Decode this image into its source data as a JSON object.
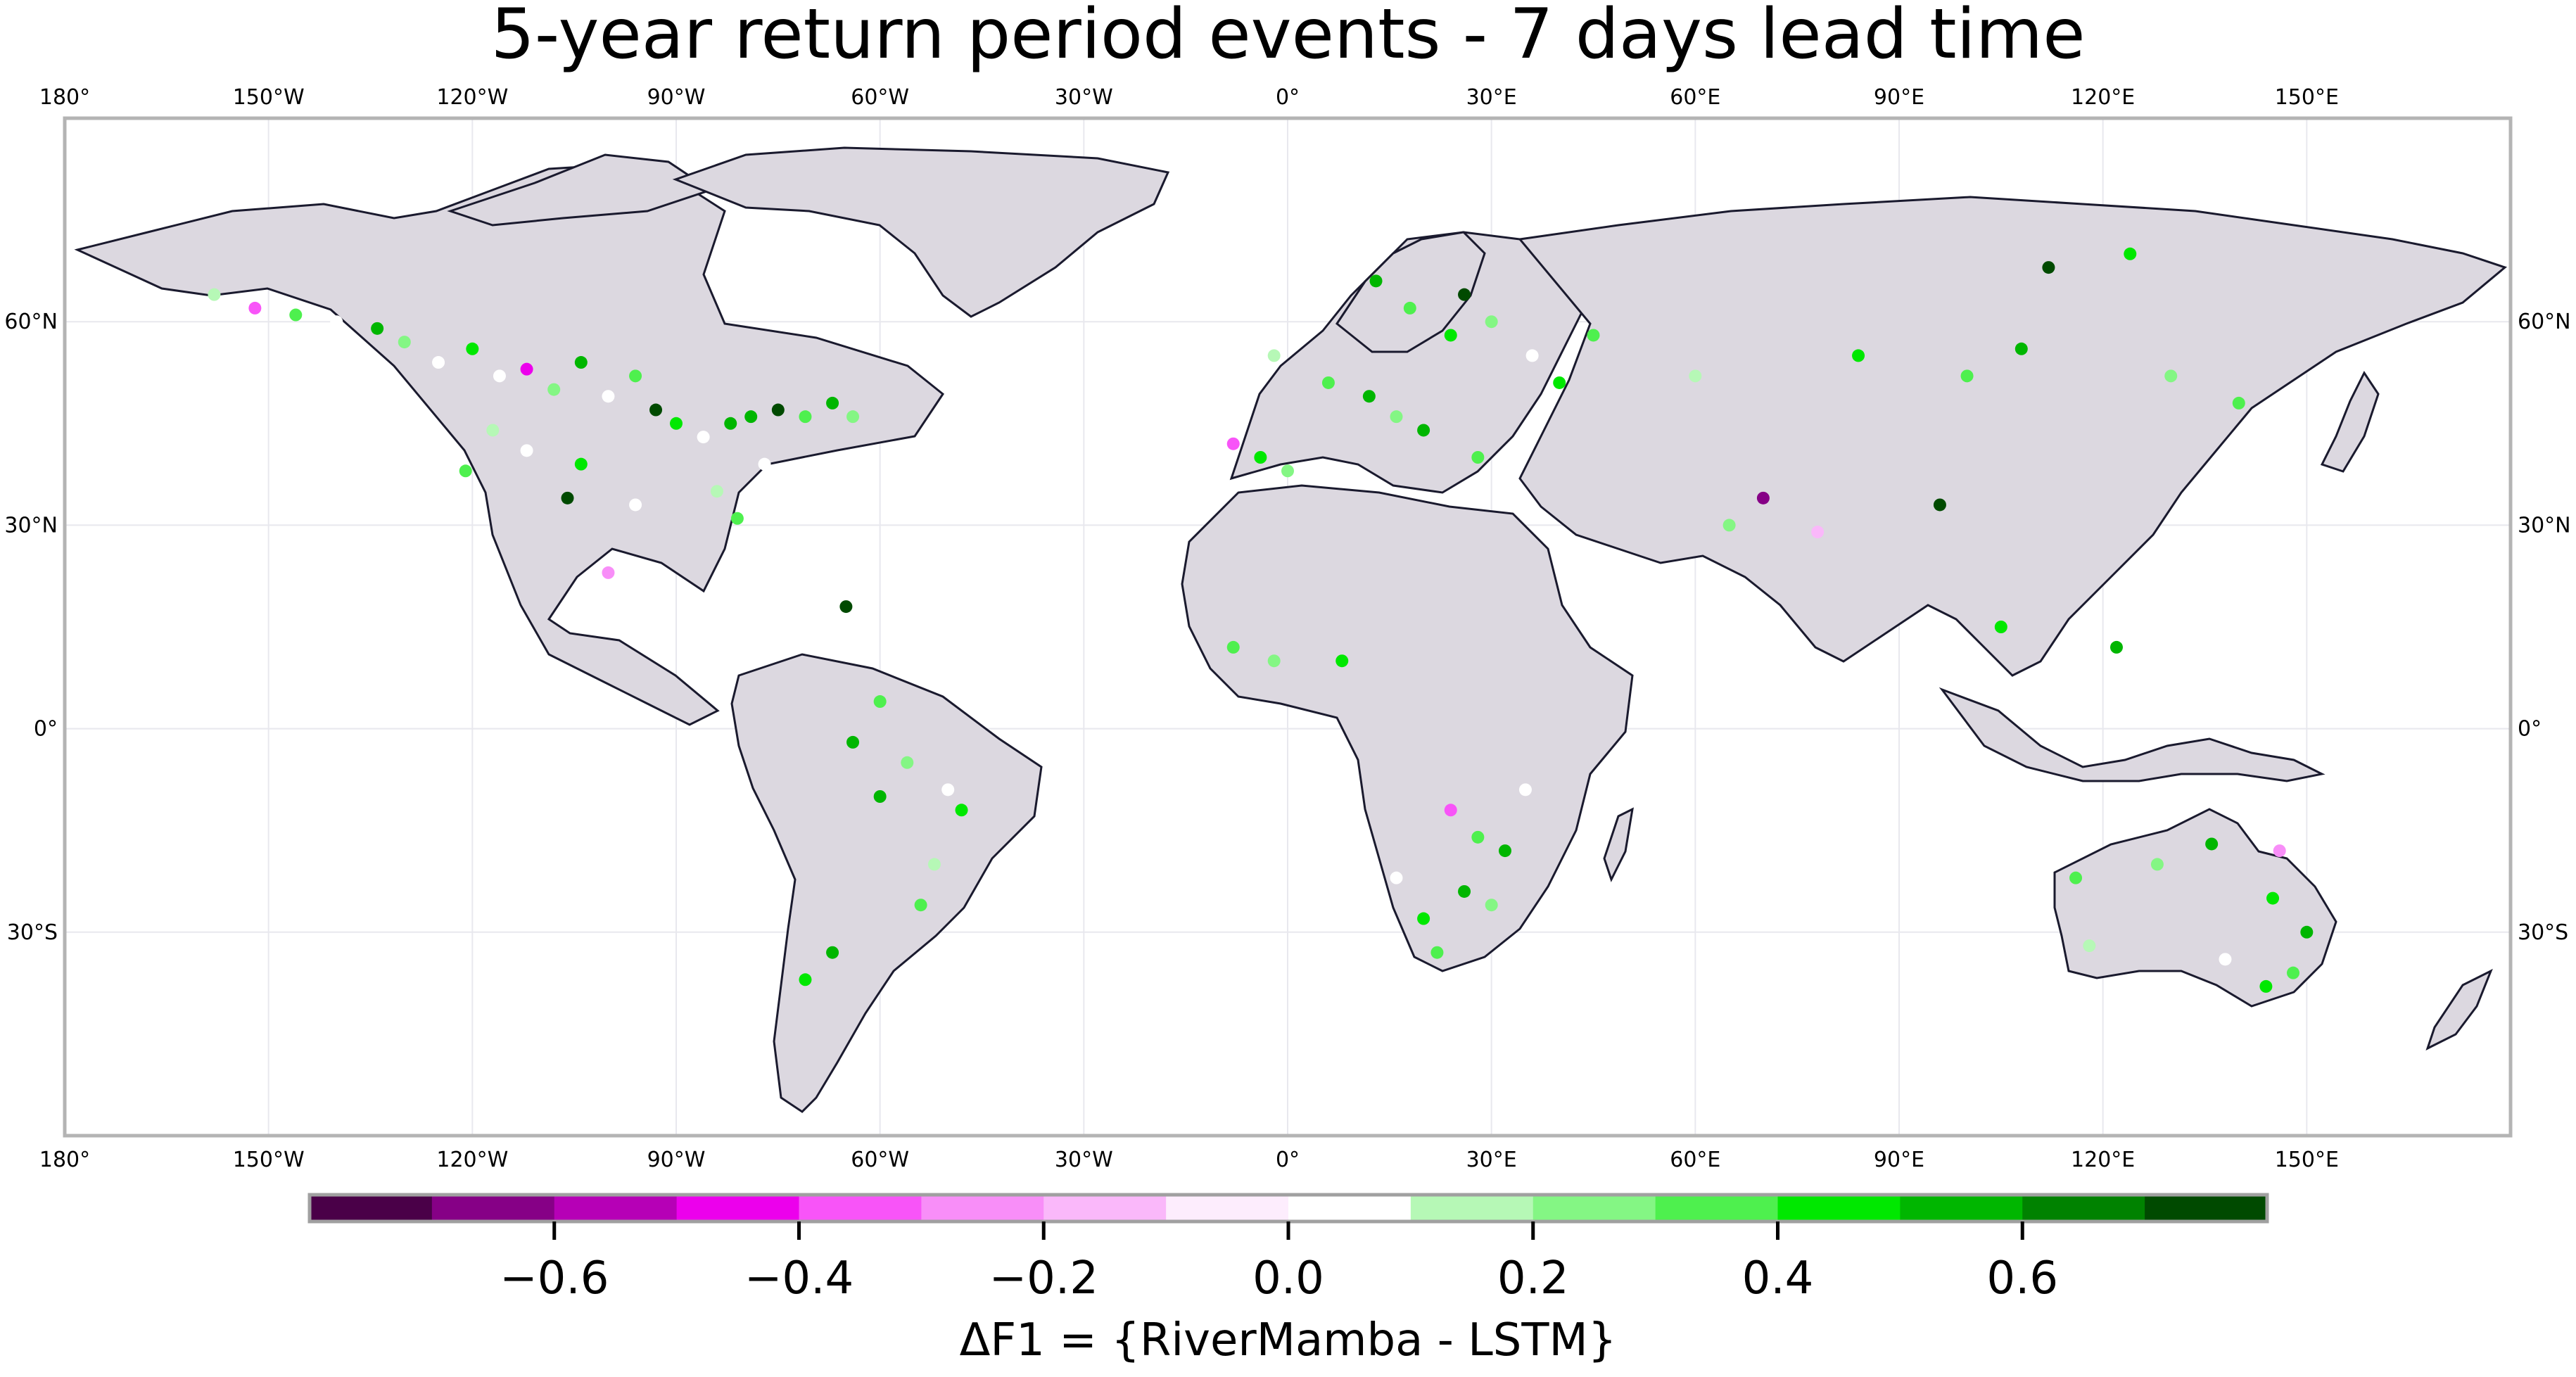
{
  "title": "5-year return period events - 7 days lead time",
  "map": {
    "projection": "equirectangular",
    "lon_range": [
      -180,
      180
    ],
    "lat_range": [
      -60,
      90
    ],
    "land_color": "#dcd8e0",
    "border_color": "#1a1a2e",
    "frame_color": "#b4b4b4",
    "grid_color": "#e8e8ee",
    "lon_ticks": [
      {
        "value": -180,
        "label": "180°"
      },
      {
        "value": -150,
        "label": "150°W"
      },
      {
        "value": -120,
        "label": "120°W"
      },
      {
        "value": -90,
        "label": "90°W"
      },
      {
        "value": -60,
        "label": "60°W"
      },
      {
        "value": -30,
        "label": "30°W"
      },
      {
        "value": 0,
        "label": "0°"
      },
      {
        "value": 30,
        "label": "30°E"
      },
      {
        "value": 60,
        "label": "60°E"
      },
      {
        "value": 90,
        "label": "90°E"
      },
      {
        "value": 120,
        "label": "120°E"
      },
      {
        "value": 150,
        "label": "150°E"
      }
    ],
    "lat_ticks": [
      {
        "value": 60,
        "label": "60°N"
      },
      {
        "value": 30,
        "label": "30°N"
      },
      {
        "value": 0,
        "label": "0°"
      },
      {
        "value": -30,
        "label": "30°S"
      }
    ]
  },
  "colorbar": {
    "label": "ΔF1 = {RiverMamba - LSTM}",
    "vmin": -0.8,
    "vmax": 0.8,
    "step": 0.1,
    "colors": [
      "#4a0048",
      "#860086",
      "#b600b6",
      "#ec00ec",
      "#f854f8",
      "#f88ef8",
      "#fab8fa",
      "#fdedfd",
      "#ffffff",
      "#b6f8b6",
      "#84f684",
      "#4ef04e",
      "#00e800",
      "#00b600",
      "#008200",
      "#004a00"
    ],
    "ticks": [
      {
        "value": -0.6,
        "label": "−0.6"
      },
      {
        "value": -0.4,
        "label": "−0.4"
      },
      {
        "value": -0.2,
        "label": "−0.2"
      },
      {
        "value": 0.0,
        "label": "0.0"
      },
      {
        "value": 0.2,
        "label": "0.2"
      },
      {
        "value": 0.4,
        "label": "0.4"
      },
      {
        "value": 0.6,
        "label": "0.6"
      }
    ]
  },
  "chart_data": {
    "type": "scatter",
    "title": "5-year return period events - 7 days lead time",
    "xlabel": "",
    "ylabel": "",
    "colorbar_label": "ΔF1 = {RiverMamba - LSTM}",
    "xlim": [
      -180,
      180
    ],
    "ylim": [
      -60,
      90
    ],
    "points": [
      {
        "lon": -158,
        "lat": 64,
        "v": 0.1
      },
      {
        "lon": -152,
        "lat": 62,
        "v": -0.4
      },
      {
        "lon": -146,
        "lat": 61,
        "v": 0.3
      },
      {
        "lon": -140,
        "lat": 60,
        "v": 0.0
      },
      {
        "lon": -134,
        "lat": 59,
        "v": 0.5
      },
      {
        "lon": -130,
        "lat": 57,
        "v": 0.2
      },
      {
        "lon": -125,
        "lat": 54,
        "v": 0.0
      },
      {
        "lon": -120,
        "lat": 56,
        "v": 0.4
      },
      {
        "lon": -116,
        "lat": 52,
        "v": 0.0
      },
      {
        "lon": -112,
        "lat": 53,
        "v": -0.5
      },
      {
        "lon": -108,
        "lat": 50,
        "v": 0.2
      },
      {
        "lon": -104,
        "lat": 54,
        "v": 0.6
      },
      {
        "lon": -100,
        "lat": 49,
        "v": 0.0
      },
      {
        "lon": -96,
        "lat": 52,
        "v": 0.3
      },
      {
        "lon": -93,
        "lat": 47,
        "v": 0.7
      },
      {
        "lon": -90,
        "lat": 45,
        "v": 0.4
      },
      {
        "lon": -86,
        "lat": 43,
        "v": 0.0
      },
      {
        "lon": -82,
        "lat": 45,
        "v": 0.6
      },
      {
        "lon": -79,
        "lat": 46,
        "v": 0.5
      },
      {
        "lon": -75,
        "lat": 47,
        "v": 0.7
      },
      {
        "lon": -71,
        "lat": 46,
        "v": 0.3
      },
      {
        "lon": -67,
        "lat": 48,
        "v": 0.5
      },
      {
        "lon": -64,
        "lat": 46,
        "v": 0.2
      },
      {
        "lon": -77,
        "lat": 39,
        "v": 0.0
      },
      {
        "lon": -84,
        "lat": 35,
        "v": 0.1
      },
      {
        "lon": -81,
        "lat": 31,
        "v": 0.3
      },
      {
        "lon": -96,
        "lat": 33,
        "v": 0.0
      },
      {
        "lon": -104,
        "lat": 39,
        "v": 0.4
      },
      {
        "lon": -112,
        "lat": 41,
        "v": 0.0
      },
      {
        "lon": -117,
        "lat": 44,
        "v": 0.1
      },
      {
        "lon": -121,
        "lat": 38,
        "v": 0.3
      },
      {
        "lon": -106,
        "lat": 34,
        "v": 0.7
      },
      {
        "lon": -100,
        "lat": 23,
        "v": -0.3
      },
      {
        "lon": -65,
        "lat": 18,
        "v": 0.7
      },
      {
        "lon": -60,
        "lat": 4,
        "v": 0.3
      },
      {
        "lon": -64,
        "lat": -2,
        "v": 0.5
      },
      {
        "lon": -56,
        "lat": -5,
        "v": 0.2
      },
      {
        "lon": -50,
        "lat": -9,
        "v": 0.0
      },
      {
        "lon": -60,
        "lat": -10,
        "v": 0.6
      },
      {
        "lon": -48,
        "lat": -12,
        "v": 0.4
      },
      {
        "lon": -52,
        "lat": -20,
        "v": 0.1
      },
      {
        "lon": -54,
        "lat": -26,
        "v": 0.3
      },
      {
        "lon": -67,
        "lat": -33,
        "v": 0.5
      },
      {
        "lon": -71,
        "lat": -37,
        "v": 0.4
      },
      {
        "lon": -40,
        "lat": -19,
        "v": 0.0
      },
      {
        "lon": -2,
        "lat": 55,
        "v": 0.1
      },
      {
        "lon": 6,
        "lat": 51,
        "v": 0.3
      },
      {
        "lon": 12,
        "lat": 49,
        "v": 0.5
      },
      {
        "lon": 16,
        "lat": 46,
        "v": 0.2
      },
      {
        "lon": 20,
        "lat": 44,
        "v": 0.6
      },
      {
        "lon": 24,
        "lat": 58,
        "v": 0.4
      },
      {
        "lon": 26,
        "lat": 64,
        "v": 0.7
      },
      {
        "lon": 18,
        "lat": 62,
        "v": 0.3
      },
      {
        "lon": 13,
        "lat": 66,
        "v": 0.5
      },
      {
        "lon": 30,
        "lat": 60,
        "v": 0.2
      },
      {
        "lon": 36,
        "lat": 55,
        "v": 0.0
      },
      {
        "lon": 40,
        "lat": 51,
        "v": 0.4
      },
      {
        "lon": 45,
        "lat": 58,
        "v": 0.3
      },
      {
        "lon": -4,
        "lat": 40,
        "v": 0.4
      },
      {
        "lon": -8,
        "lat": 42,
        "v": -0.4
      },
      {
        "lon": 0,
        "lat": 38,
        "v": 0.2
      },
      {
        "lon": 28,
        "lat": 40,
        "v": 0.3
      },
      {
        "lon": 70,
        "lat": 34,
        "v": -0.7
      },
      {
        "lon": 65,
        "lat": 30,
        "v": 0.2
      },
      {
        "lon": 60,
        "lat": 52,
        "v": 0.1
      },
      {
        "lon": 84,
        "lat": 55,
        "v": 0.4
      },
      {
        "lon": 100,
        "lat": 52,
        "v": 0.3
      },
      {
        "lon": 108,
        "lat": 56,
        "v": 0.5
      },
      {
        "lon": 112,
        "lat": 68,
        "v": 0.7
      },
      {
        "lon": 124,
        "lat": 70,
        "v": 0.4
      },
      {
        "lon": 130,
        "lat": 52,
        "v": 0.2
      },
      {
        "lon": 140,
        "lat": 48,
        "v": 0.3
      },
      {
        "lon": 96,
        "lat": 33,
        "v": 0.7
      },
      {
        "lon": 105,
        "lat": 15,
        "v": 0.4
      },
      {
        "lon": 122,
        "lat": 12,
        "v": 0.5
      },
      {
        "lon": 78,
        "lat": 29,
        "v": -0.2
      },
      {
        "lon": -8,
        "lat": 12,
        "v": 0.3
      },
      {
        "lon": -2,
        "lat": 10,
        "v": 0.2
      },
      {
        "lon": 8,
        "lat": 10,
        "v": 0.4
      },
      {
        "lon": -14,
        "lat": 9,
        "v": 0.0
      },
      {
        "lon": 24,
        "lat": -12,
        "v": -0.4
      },
      {
        "lon": 28,
        "lat": -16,
        "v": 0.3
      },
      {
        "lon": 32,
        "lat": -18,
        "v": 0.5
      },
      {
        "lon": 26,
        "lat": -24,
        "v": 0.6
      },
      {
        "lon": 30,
        "lat": -26,
        "v": 0.2
      },
      {
        "lon": 20,
        "lat": -28,
        "v": 0.4
      },
      {
        "lon": 16,
        "lat": -22,
        "v": 0.0
      },
      {
        "lon": 22,
        "lat": -33,
        "v": 0.3
      },
      {
        "lon": 35,
        "lat": -9,
        "v": 0.0
      },
      {
        "lon": 116,
        "lat": -22,
        "v": 0.3
      },
      {
        "lon": 128,
        "lat": -20,
        "v": 0.2
      },
      {
        "lon": 136,
        "lat": -17,
        "v": 0.6
      },
      {
        "lon": 145,
        "lat": -25,
        "v": 0.4
      },
      {
        "lon": 150,
        "lat": -30,
        "v": 0.5
      },
      {
        "lon": 148,
        "lat": -36,
        "v": 0.3
      },
      {
        "lon": 144,
        "lat": -38,
        "v": 0.4
      },
      {
        "lon": 138,
        "lat": -34,
        "v": 0.0
      },
      {
        "lon": 118,
        "lat": -32,
        "v": 0.1
      },
      {
        "lon": 146,
        "lat": -18,
        "v": -0.3
      }
    ]
  }
}
